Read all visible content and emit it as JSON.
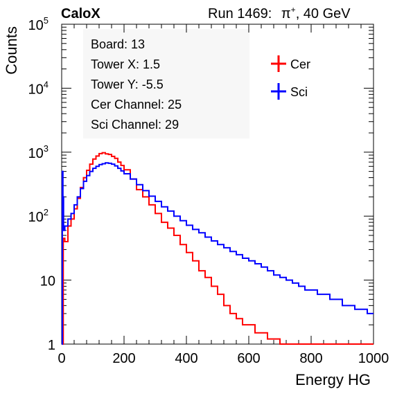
{
  "header": {
    "brand": "CaloX",
    "run_prefix": "Run 1469:",
    "particle": "π",
    "particle_charge": "+",
    "energy_suffix": ", 40 GeV"
  },
  "info_box": {
    "lines": [
      "Board: 13",
      "Tower X: 1.5",
      "Tower Y: -5.5",
      "Cer Channel: 25",
      "Sci Channel: 29"
    ]
  },
  "legend": {
    "items": [
      {
        "label": "Cer",
        "color": "#ff0000"
      },
      {
        "label": "Sci",
        "color": "#0000ff"
      }
    ]
  },
  "chart_data": {
    "type": "line",
    "xlabel": "Energy HG",
    "ylabel": "Counts",
    "xlim": [
      0,
      1000
    ],
    "ylim": [
      1,
      100000
    ],
    "yscale": "log",
    "x_ticks": [
      "0",
      "200",
      "400",
      "600",
      "800",
      "1000"
    ],
    "y_ticks": [
      {
        "value": 1,
        "label": "1"
      },
      {
        "value": 10,
        "label": "10"
      },
      {
        "value": 100,
        "label": "10",
        "exp": "2"
      },
      {
        "value": 1000,
        "label": "10",
        "exp": "3"
      },
      {
        "value": 10000,
        "label": "10",
        "exp": "4"
      },
      {
        "value": 100000,
        "label": "10",
        "exp": "5"
      }
    ],
    "series": [
      {
        "name": "Cer",
        "color": "#ff0000",
        "x": [
          0,
          2,
          5,
          10,
          20,
          30,
          40,
          50,
          60,
          70,
          80,
          90,
          100,
          110,
          120,
          130,
          140,
          150,
          160,
          170,
          180,
          190,
          200,
          220,
          240,
          260,
          280,
          300,
          320,
          340,
          360,
          380,
          400,
          420,
          440,
          460,
          480,
          500,
          520,
          540,
          560,
          580,
          600,
          620,
          640,
          660,
          680,
          700,
          720,
          740,
          760,
          780,
          800,
          850,
          900,
          950,
          1000
        ],
        "values": [
          1,
          1,
          45,
          40,
          70,
          90,
          130,
          190,
          280,
          400,
          520,
          650,
          780,
          870,
          950,
          980,
          940,
          920,
          860,
          800,
          700,
          620,
          530,
          380,
          260,
          200,
          150,
          110,
          80,
          65,
          50,
          36,
          27,
          20,
          14,
          11,
          8,
          6,
          4,
          3,
          2.5,
          2,
          2,
          1.5,
          1.5,
          1.2,
          1.2,
          1,
          1,
          1,
          1,
          1,
          1,
          1,
          1,
          1,
          1
        ]
      },
      {
        "name": "Sci",
        "color": "#0000ff",
        "x": [
          0,
          2,
          4,
          6,
          10,
          20,
          30,
          40,
          50,
          60,
          70,
          80,
          90,
          100,
          110,
          120,
          130,
          140,
          150,
          160,
          170,
          180,
          190,
          200,
          220,
          240,
          260,
          280,
          300,
          320,
          340,
          360,
          380,
          400,
          420,
          440,
          460,
          480,
          500,
          520,
          540,
          560,
          580,
          600,
          620,
          640,
          660,
          680,
          700,
          720,
          740,
          760,
          780,
          800,
          820,
          840,
          860,
          880,
          900,
          920,
          940,
          960,
          980,
          1000
        ],
        "values": [
          1,
          500,
          200,
          60,
          70,
          90,
          110,
          150,
          200,
          270,
          350,
          430,
          500,
          560,
          600,
          640,
          660,
          680,
          670,
          650,
          610,
          560,
          510,
          460,
          380,
          310,
          250,
          205,
          170,
          140,
          120,
          100,
          85,
          72,
          62,
          55,
          47,
          41,
          36,
          32,
          28,
          25,
          22,
          20,
          18,
          16,
          14,
          12,
          11,
          10,
          9,
          8,
          7,
          7,
          6,
          6,
          5,
          5,
          4,
          4,
          3.5,
          3.5,
          3,
          3
        ]
      }
    ]
  }
}
